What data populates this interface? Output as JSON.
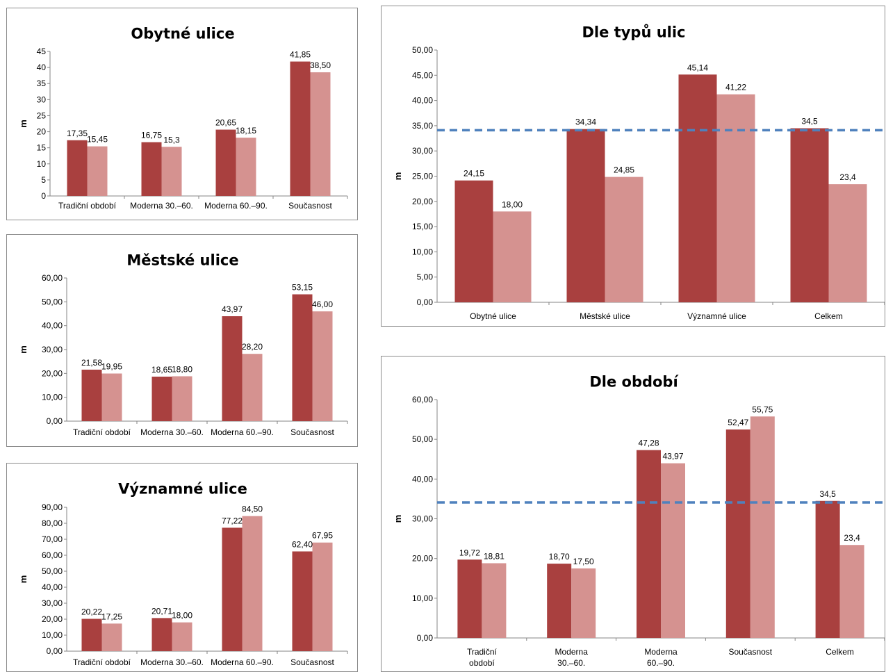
{
  "chart_data": [
    {
      "id": "obytne",
      "type": "bar",
      "title": "Obytné ulice",
      "ylabel": "m",
      "xlabel": "",
      "ylim": [
        0,
        45
      ],
      "y_ticks": [
        "0",
        "5",
        "10",
        "15",
        "20",
        "25",
        "30",
        "35",
        "40",
        "45"
      ],
      "categories": [
        [
          "Tradiční období"
        ],
        [
          "Moderna 30.–60."
        ],
        [
          "Moderna 60.–90."
        ],
        [
          "Současnost"
        ]
      ],
      "series": [
        {
          "color": "#a9403f",
          "values": [
            17.35,
            16.75,
            20.65,
            41.85
          ],
          "labels": [
            "17,35",
            "16,75",
            "20,65",
            "41,85"
          ]
        },
        {
          "color": "#d59290",
          "values": [
            15.45,
            15.3,
            18.15,
            38.5
          ],
          "labels": [
            "15,45",
            "15,3",
            "18,15",
            "38,50"
          ]
        }
      ],
      "grid": false
    },
    {
      "id": "mestske",
      "type": "bar",
      "title": "Městské ulice",
      "ylabel": "m",
      "xlabel": "",
      "ylim": [
        0,
        60
      ],
      "y_ticks": [
        "0,00",
        "10,00",
        "20,00",
        "30,00",
        "40,00",
        "50,00",
        "60,00"
      ],
      "categories": [
        [
          "Tradiční období"
        ],
        [
          "Moderna 30.–60."
        ],
        [
          "Moderna 60.–90."
        ],
        [
          "Současnost"
        ]
      ],
      "series": [
        {
          "color": "#a9403f",
          "values": [
            21.58,
            18.65,
            43.97,
            53.15
          ],
          "labels": [
            "21,58",
            "18,65",
            "43,97",
            "53,15"
          ]
        },
        {
          "color": "#d59290",
          "values": [
            19.95,
            18.8,
            28.2,
            46.0
          ],
          "labels": [
            "19,95",
            "18,80",
            "28,20",
            "46,00"
          ]
        }
      ],
      "grid": false
    },
    {
      "id": "vyznamne",
      "type": "bar",
      "title": "Významné ulice",
      "ylabel": "m",
      "xlabel": "",
      "ylim": [
        0,
        90
      ],
      "y_ticks": [
        "0,00",
        "10,00",
        "20,00",
        "30,00",
        "40,00",
        "50,00",
        "60,00",
        "70,00",
        "80,00",
        "90,00"
      ],
      "categories": [
        [
          "Tradiční období"
        ],
        [
          "Moderna 30.–60."
        ],
        [
          "Moderna 60.–90."
        ],
        [
          "Současnost"
        ]
      ],
      "series": [
        {
          "color": "#a9403f",
          "values": [
            20.22,
            20.71,
            77.22,
            62.4
          ],
          "labels": [
            "20,22",
            "20,71",
            "77,22",
            "62,40"
          ]
        },
        {
          "color": "#d59290",
          "values": [
            17.25,
            18.0,
            84.5,
            67.95
          ],
          "labels": [
            "17,25",
            "18,00",
            "84,50",
            "67,95"
          ]
        }
      ],
      "grid": false
    },
    {
      "id": "typy",
      "type": "bar",
      "title": "Dle typů ulic",
      "ylabel": "m",
      "xlabel": "",
      "ylim": [
        0,
        50
      ],
      "y_ticks": [
        "0,00",
        "5,00",
        "10,00",
        "15,00",
        "20,00",
        "25,00",
        "30,00",
        "35,00",
        "40,00",
        "45,00",
        "50,00"
      ],
      "categories": [
        [
          "Obytné ulice"
        ],
        [
          "Městské ulice"
        ],
        [
          "Významné ulice"
        ],
        [
          "Celkem"
        ]
      ],
      "series": [
        {
          "color": "#a9403f",
          "values": [
            24.15,
            34.34,
            45.14,
            34.5
          ],
          "labels": [
            "24,15",
            "34,34",
            "45,14",
            "34,5"
          ]
        },
        {
          "color": "#d59290",
          "values": [
            18.0,
            24.85,
            41.22,
            23.4
          ],
          "labels": [
            "18,00",
            "24,85",
            "41,22",
            "23,4"
          ]
        }
      ],
      "reference_line": {
        "value": 34.1,
        "color": "#4f81bd",
        "style": "dashed"
      },
      "grid": false
    },
    {
      "id": "obdobi",
      "type": "bar",
      "title": "Dle období",
      "ylabel": "m",
      "xlabel": "",
      "ylim": [
        0,
        60
      ],
      "y_ticks": [
        "0,00",
        "10,00",
        "20,00",
        "30,00",
        "40,00",
        "50,00",
        "60,00"
      ],
      "categories": [
        [
          "Tradiční",
          "období"
        ],
        [
          "Moderna",
          "30.–60."
        ],
        [
          "Moderna",
          "60.–90."
        ],
        [
          "Současnost"
        ],
        [
          "Celkem"
        ]
      ],
      "series": [
        {
          "color": "#a9403f",
          "values": [
            19.72,
            18.7,
            47.28,
            52.47,
            34.5
          ],
          "labels": [
            "19,72",
            "18,70",
            "47,28",
            "52,47",
            "34,5"
          ]
        },
        {
          "color": "#d59290",
          "values": [
            18.81,
            17.5,
            43.97,
            55.75,
            23.4
          ],
          "labels": [
            "18,81",
            "17,50",
            "43,97",
            "55,75",
            "23,4"
          ]
        }
      ],
      "reference_line": {
        "value": 34.1,
        "color": "#4f81bd",
        "style": "dashed"
      },
      "grid": false
    }
  ]
}
